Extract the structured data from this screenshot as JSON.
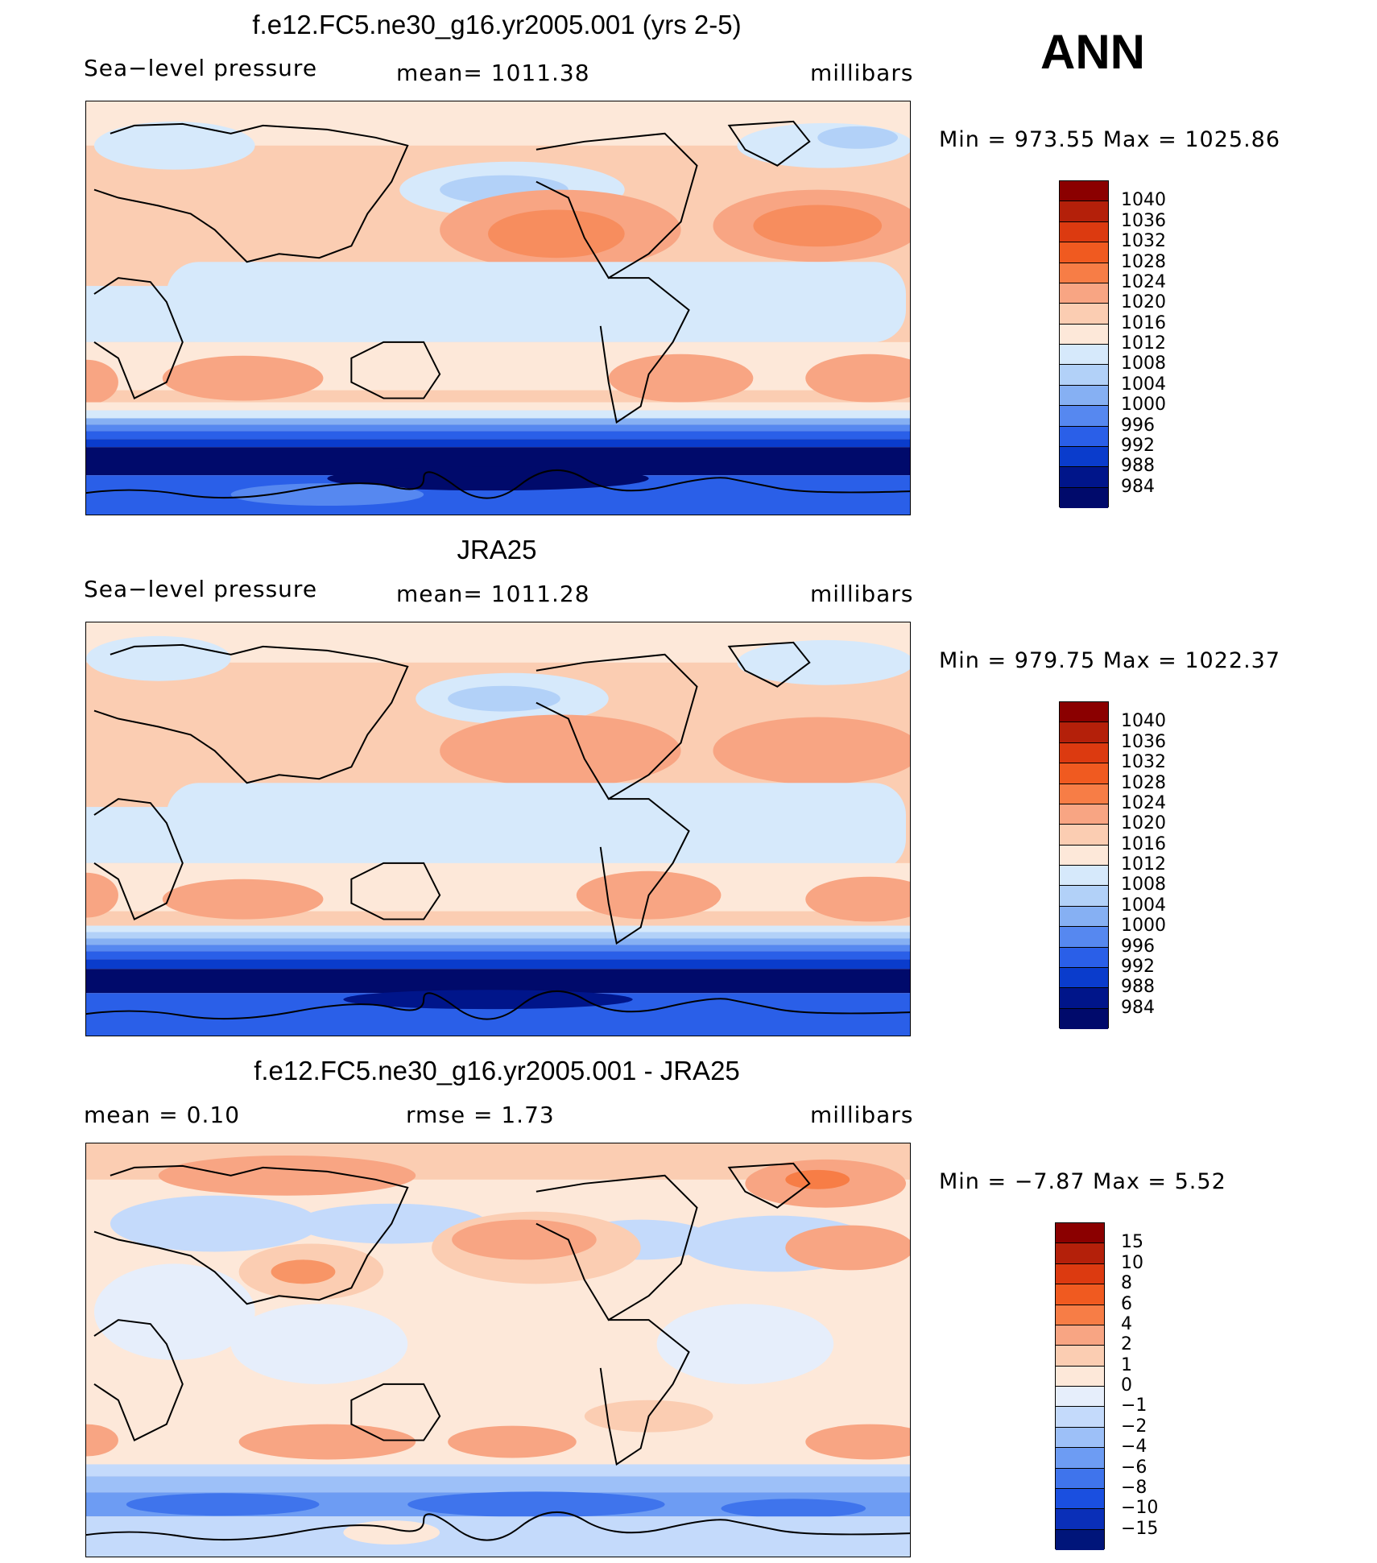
{
  "season": "ANN",
  "panels": [
    {
      "title": "f.e12.FC5.ne30_g16.yr2005.001 (yrs 2-5)",
      "left_text": "Sea−level pressure",
      "center_text": "mean=  1011.38",
      "units": "millibars",
      "minmax": "Min  =  973.55  Max  =  1025.86",
      "levels": [
        "1040",
        "1036",
        "1032",
        "1028",
        "1024",
        "1020",
        "1016",
        "1012",
        "1008",
        "1004",
        "1000",
        "996",
        "992",
        "988",
        "984"
      ],
      "colors": [
        "#8b0000",
        "#b4200a",
        "#dc3a10",
        "#f05a20",
        "#f77d46",
        "#f8a583",
        "#fbcdb2",
        "#fde8d9",
        "#d6e9fb",
        "#b2d1f8",
        "#86b0f3",
        "#5688f0",
        "#2a5fe8",
        "#0a3ccc",
        "#00158a",
        "#000a6b"
      ]
    },
    {
      "title": "JRA25",
      "left_text": "Sea−level pressure",
      "center_text": "mean=  1011.28",
      "units": "millibars",
      "minmax": "Min  =  979.75  Max  =  1022.37",
      "levels": [
        "1040",
        "1036",
        "1032",
        "1028",
        "1024",
        "1020",
        "1016",
        "1012",
        "1008",
        "1004",
        "1000",
        "996",
        "992",
        "988",
        "984"
      ],
      "colors": [
        "#8b0000",
        "#b4200a",
        "#dc3a10",
        "#f05a20",
        "#f77d46",
        "#f8a583",
        "#fbcdb2",
        "#fde8d9",
        "#d6e9fb",
        "#b2d1f8",
        "#86b0f3",
        "#5688f0",
        "#2a5fe8",
        "#0a3ccc",
        "#00158a",
        "#000a6b"
      ]
    },
    {
      "title": "f.e12.FC5.ne30_g16.yr2005.001 - JRA25",
      "left_text": "mean  =      0.10",
      "center_text": "rmse  =      1.73",
      "units": "millibars",
      "minmax": "Min  =    −7.87  Max  =      5.52",
      "levels": [
        "15",
        "10",
        "8",
        "6",
        "4",
        "2",
        "1",
        "0",
        "−1",
        "−2",
        "−4",
        "−6",
        "−8",
        "−10",
        "−15"
      ],
      "colors": [
        "#8b0000",
        "#b4200a",
        "#dc3a10",
        "#f05a20",
        "#f77d46",
        "#f8a583",
        "#fbcdb2",
        "#fde8d9",
        "#e6eefb",
        "#c4dafb",
        "#9dc0f8",
        "#6d9cf3",
        "#3f74ec",
        "#1a4fe0",
        "#0a2fb8",
        "#00157a"
      ]
    }
  ]
}
